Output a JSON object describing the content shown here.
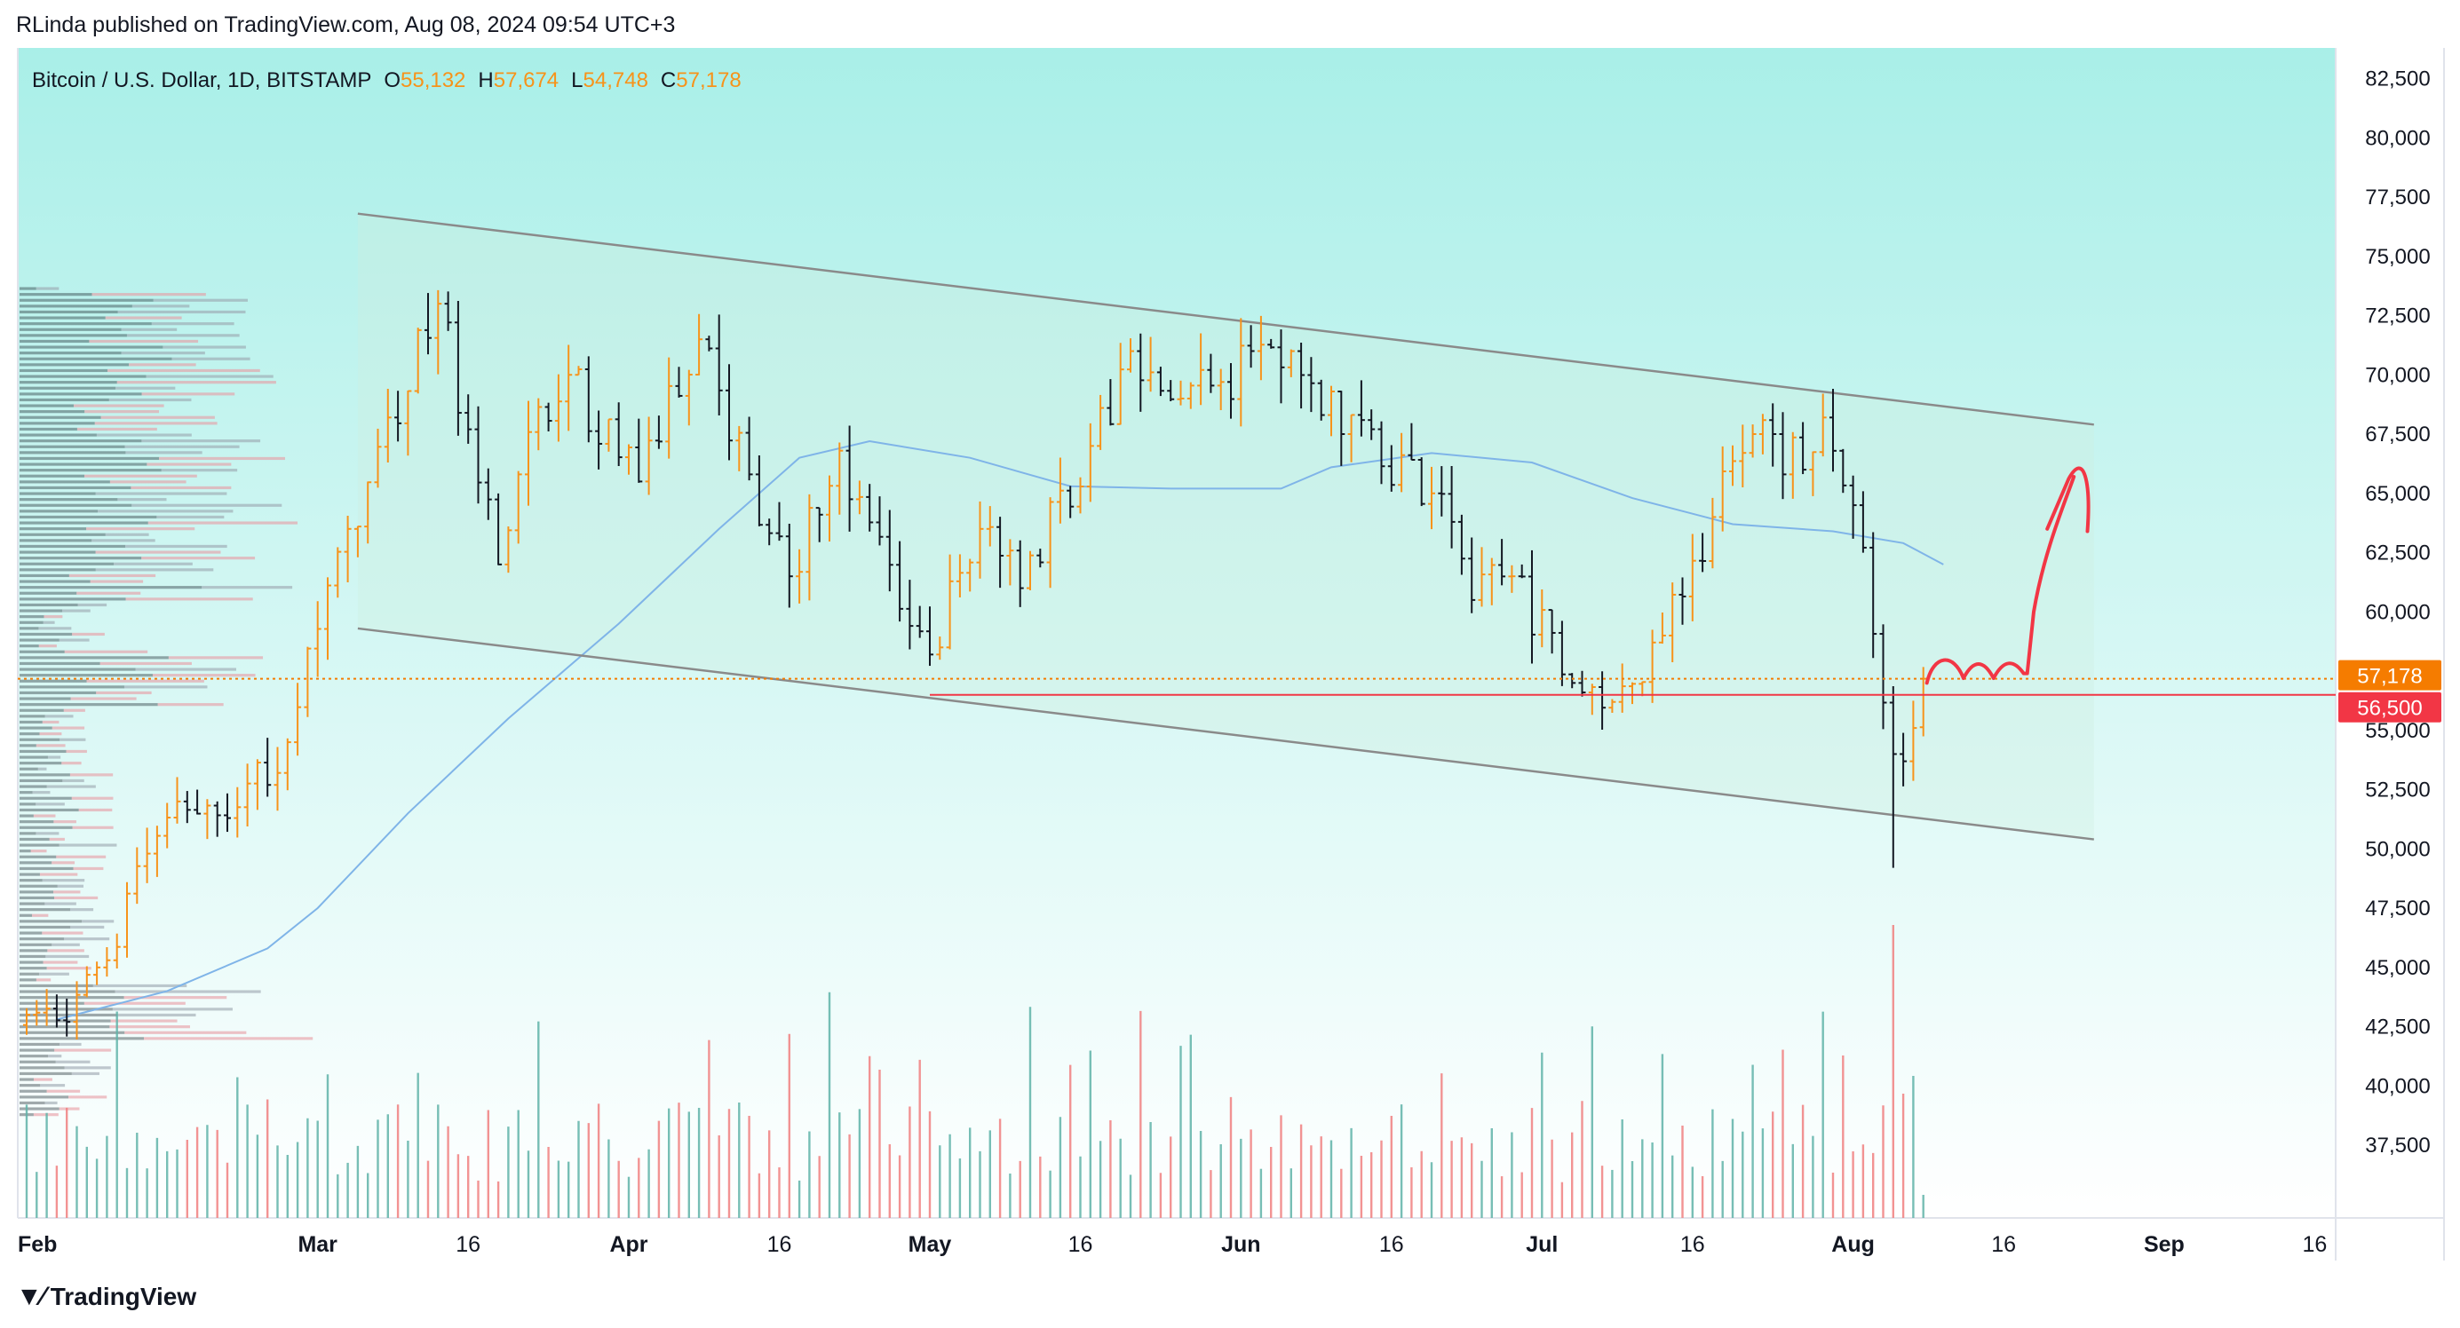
{
  "header": {
    "published": "RLinda published on TradingView.com, Aug 08, 2024 09:54 UTC+3"
  },
  "legend": {
    "symbol": "Bitcoin / U.S. Dollar, 1D, BITSTAMP",
    "o_label": "O",
    "o_value": "55,132",
    "h_label": "H",
    "h_value": "57,674",
    "l_label": "L",
    "l_value": "54,748",
    "c_label": "C",
    "c_value": "57,178"
  },
  "footer": {
    "brand": "TradingView",
    "logo_icon": "tradingview-logo-icon"
  },
  "colors": {
    "bg_top": "#aef0ea",
    "bg_bottom": "#ffffff",
    "up": "#f7931a",
    "down": "#131722",
    "vol_up": "#5fb3a8",
    "vol_down": "#f08080",
    "ma": "#7fb4e8",
    "channel": "#8a8a8a",
    "price_tag": "#f57c00",
    "level_tag": "#f23645",
    "arrow": "#f23645"
  },
  "chart_data": {
    "type": "ohlc",
    "title": "Bitcoin / U.S. Dollar, 1D, BITSTAMP",
    "y_axis": {
      "range": [
        33000,
        84500
      ],
      "ticks": [
        37500,
        40000,
        42500,
        45000,
        47500,
        50000,
        52500,
        55000,
        57500,
        60000,
        62500,
        65000,
        67500,
        70000,
        72500,
        75000,
        77500,
        80000,
        82500
      ],
      "tick_labels": [
        "37,500",
        "40,000",
        "42,500",
        "45,000",
        "47,500",
        "50,000",
        "52,500",
        "55,000",
        "57,500",
        "60,000",
        "62,500",
        "65,000",
        "67,500",
        "70,000",
        "72,500",
        "75,000",
        "77,500",
        "80,000",
        "82,500"
      ]
    },
    "x_axis": {
      "start_date": "2024-02-01",
      "end_date": "2024-09-23",
      "ticks": [
        {
          "date": "2024-02-01",
          "label": "Feb",
          "bold": true
        },
        {
          "date": "2024-03-01",
          "label": "Mar",
          "bold": true
        },
        {
          "date": "2024-03-16",
          "label": "16",
          "bold": false
        },
        {
          "date": "2024-04-01",
          "label": "Apr",
          "bold": true
        },
        {
          "date": "2024-04-16",
          "label": "16",
          "bold": false
        },
        {
          "date": "2024-05-01",
          "label": "May",
          "bold": true
        },
        {
          "date": "2024-05-16",
          "label": "16",
          "bold": false
        },
        {
          "date": "2024-06-01",
          "label": "Jun",
          "bold": true
        },
        {
          "date": "2024-06-16",
          "label": "16",
          "bold": false
        },
        {
          "date": "2024-07-01",
          "label": "Jul",
          "bold": true
        },
        {
          "date": "2024-07-16",
          "label": "16",
          "bold": false
        },
        {
          "date": "2024-08-01",
          "label": "Aug",
          "bold": true
        },
        {
          "date": "2024-08-16",
          "label": "16",
          "bold": false
        },
        {
          "date": "2024-09-01",
          "label": "Sep",
          "bold": true
        },
        {
          "date": "2024-09-16",
          "label": "16",
          "bold": false
        }
      ]
    },
    "last_price": {
      "value": 57178,
      "label": "57,178"
    },
    "key_level": {
      "value": 56500,
      "label": "56,500"
    },
    "channel": {
      "upper": [
        {
          "date": "2024-03-05",
          "price": 76800
        },
        {
          "date": "2024-08-25",
          "price": 67900
        }
      ],
      "lower": [
        {
          "date": "2024-03-05",
          "price": 59300
        },
        {
          "date": "2024-08-25",
          "price": 50400
        }
      ]
    },
    "moving_average": [
      {
        "date": "2024-02-04",
        "price": 42800
      },
      {
        "date": "2024-02-15",
        "price": 44000
      },
      {
        "date": "2024-02-25",
        "price": 45800
      },
      {
        "date": "2024-03-01",
        "price": 47500
      },
      {
        "date": "2024-03-10",
        "price": 51500
      },
      {
        "date": "2024-03-20",
        "price": 55500
      },
      {
        "date": "2024-03-31",
        "price": 59500
      },
      {
        "date": "2024-04-10",
        "price": 63500
      },
      {
        "date": "2024-04-18",
        "price": 66500
      },
      {
        "date": "2024-04-25",
        "price": 67200
      },
      {
        "date": "2024-05-05",
        "price": 66500
      },
      {
        "date": "2024-05-15",
        "price": 65300
      },
      {
        "date": "2024-05-25",
        "price": 65200
      },
      {
        "date": "2024-06-05",
        "price": 65200
      },
      {
        "date": "2024-06-10",
        "price": 66100
      },
      {
        "date": "2024-06-20",
        "price": 66700
      },
      {
        "date": "2024-06-30",
        "price": 66300
      },
      {
        "date": "2024-07-10",
        "price": 64800
      },
      {
        "date": "2024-07-20",
        "price": 63700
      },
      {
        "date": "2024-07-30",
        "price": 63400
      },
      {
        "date": "2024-08-06",
        "price": 62900
      },
      {
        "date": "2024-08-10",
        "price": 62000
      }
    ],
    "anchors": [
      {
        "date": "2024-02-01",
        "price": 43000
      },
      {
        "date": "2024-02-05",
        "price": 42700
      },
      {
        "date": "2024-02-09",
        "price": 45300
      },
      {
        "date": "2024-02-13",
        "price": 49800
      },
      {
        "date": "2024-02-16",
        "price": 52000
      },
      {
        "date": "2024-02-21",
        "price": 51300
      },
      {
        "date": "2024-02-27",
        "price": 54500
      },
      {
        "date": "2024-03-04",
        "price": 63500
      },
      {
        "date": "2024-03-05",
        "price": 63600
      },
      {
        "date": "2024-03-08",
        "price": 68200
      },
      {
        "date": "2024-03-13",
        "price": 73000
      },
      {
        "date": "2024-03-19",
        "price": 62000
      },
      {
        "date": "2024-03-21",
        "price": 65800
      },
      {
        "date": "2024-03-26",
        "price": 70000
      },
      {
        "date": "2024-04-02",
        "price": 65500
      },
      {
        "date": "2024-04-08",
        "price": 71500
      },
      {
        "date": "2024-04-13",
        "price": 65800
      },
      {
        "date": "2024-04-17",
        "price": 61500
      },
      {
        "date": "2024-04-22",
        "price": 66800
      },
      {
        "date": "2024-05-01",
        "price": 58200
      },
      {
        "date": "2024-05-06",
        "price": 63500
      },
      {
        "date": "2024-05-10",
        "price": 61000
      },
      {
        "date": "2024-05-17",
        "price": 67000
      },
      {
        "date": "2024-05-21",
        "price": 71000
      },
      {
        "date": "2024-05-26",
        "price": 69000
      },
      {
        "date": "2024-06-06",
        "price": 71000
      },
      {
        "date": "2024-06-11",
        "price": 67500
      },
      {
        "date": "2024-06-20",
        "price": 65000
      },
      {
        "date": "2024-06-24",
        "price": 60500
      },
      {
        "date": "2024-06-28",
        "price": 61500
      },
      {
        "date": "2024-07-04",
        "price": 57000
      },
      {
        "date": "2024-07-05",
        "price": 56600
      },
      {
        "date": "2024-07-08",
        "price": 56200
      },
      {
        "date": "2024-07-13",
        "price": 59000
      },
      {
        "date": "2024-07-18",
        "price": 64000
      },
      {
        "date": "2024-07-22",
        "price": 67500
      },
      {
        "date": "2024-07-25",
        "price": 65800
      },
      {
        "date": "2024-07-29",
        "price": 68200
      },
      {
        "date": "2024-08-01",
        "price": 64500
      },
      {
        "date": "2024-08-05",
        "price": 54000
      },
      {
        "date": "2024-08-07",
        "price": 55100
      },
      {
        "date": "2024-08-08",
        "price": 57178
      }
    ]
  }
}
